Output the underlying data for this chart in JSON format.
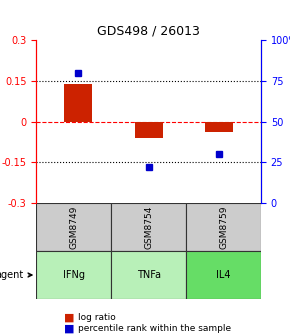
{
  "title": "GDS498 / 26013",
  "samples": [
    "GSM8749",
    "GSM8754",
    "GSM8759"
  ],
  "agents": [
    "IFNg",
    "TNFa",
    "IL4"
  ],
  "log_ratios": [
    0.14,
    -0.06,
    -0.04
  ],
  "percentile_ranks": [
    80,
    22,
    30
  ],
  "ylim_left": [
    -0.3,
    0.3
  ],
  "ylim_right": [
    0,
    100
  ],
  "yticks_left": [
    -0.3,
    -0.15,
    0,
    0.15,
    0.3
  ],
  "yticks_right": [
    0,
    25,
    50,
    75,
    100
  ],
  "ytick_labels_left": [
    "-0.3",
    "-0.15",
    "0",
    "0.15",
    "0.3"
  ],
  "ytick_labels_right": [
    "0",
    "25",
    "50",
    "75",
    "100%"
  ],
  "hlines": [
    0.15,
    0,
    -0.15
  ],
  "hline_styles": [
    "dotted",
    "dashed",
    "dotted"
  ],
  "hline_colors": [
    "black",
    "red",
    "black"
  ],
  "bar_color": "#cc2200",
  "dot_color": "#0000cc",
  "agent_colors": [
    "#b8f0b8",
    "#b8f0b8",
    "#66dd66"
  ],
  "sample_bg_color": "#cccccc",
  "table_border_color": "#333333",
  "legend_red_label": "log ratio",
  "legend_blue_label": "percentile rank within the sample",
  "agent_label": "agent",
  "bar_width": 0.4
}
